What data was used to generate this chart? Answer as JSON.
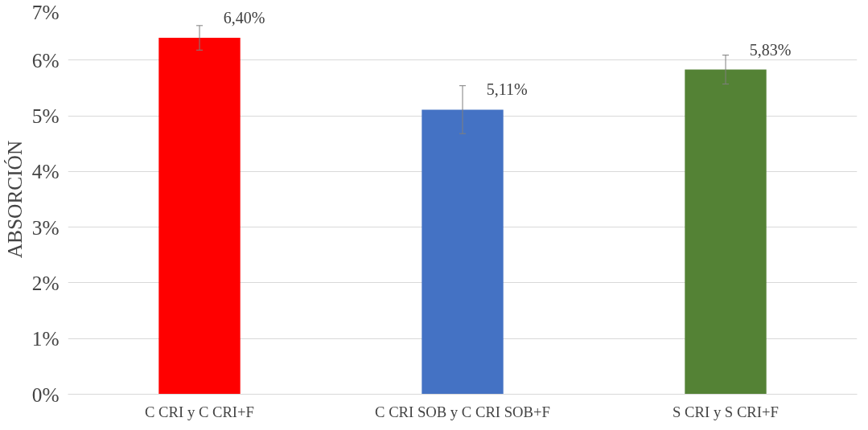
{
  "chart_data": {
    "type": "bar",
    "ylabel": "ABSORCIÓN",
    "categories": [
      "C CRI y C CRI+F",
      "C CRI SOB y C CRI SOB+F",
      "S CRI y S CRI+F"
    ],
    "values": [
      6.4,
      5.11,
      5.83
    ],
    "colors": [
      "#ff0000",
      "#4472c4",
      "#548235"
    ],
    "errors": [
      0.22,
      0.43,
      0.26
    ],
    "value_labels": [
      "6,40%",
      "5,11%",
      "5,83%"
    ],
    "ylim": [
      0,
      7
    ],
    "yticks": [
      {
        "value": 0,
        "label": "0%"
      },
      {
        "value": 1,
        "label": "1%"
      },
      {
        "value": 2,
        "label": "2%"
      },
      {
        "value": 3,
        "label": "3%"
      },
      {
        "value": 4,
        "label": "4%"
      },
      {
        "value": 5,
        "label": "5%"
      },
      {
        "value": 6,
        "label": "6%"
      },
      {
        "value": 7,
        "label": "7%"
      }
    ],
    "grid": "y"
  }
}
